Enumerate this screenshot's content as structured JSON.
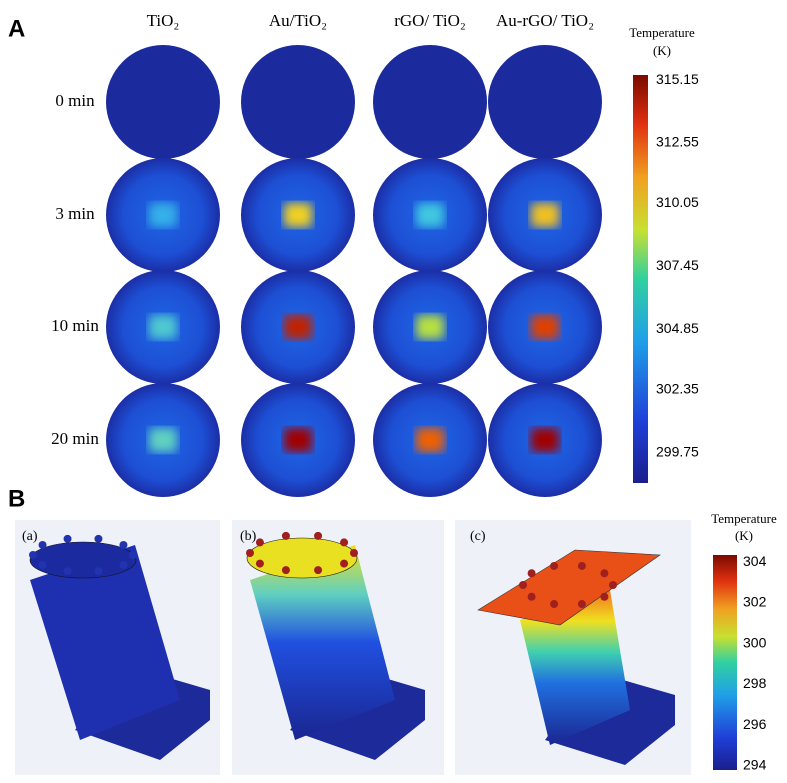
{
  "panel_a": {
    "label": "A",
    "columns": [
      "TiO₂",
      "Au/TiO₂",
      "rGO/ TiO₂",
      "Au-rGO/ TiO₂"
    ],
    "rows": [
      "0 min",
      "3 min",
      "10 min",
      "20 min"
    ],
    "colorbar": {
      "title": "Temperature",
      "unit": "(K)",
      "lim": [
        298.5,
        315.36
      ],
      "ticks": [
        315.15,
        312.55,
        310.05,
        307.45,
        304.85,
        302.35,
        299.75
      ]
    }
  },
  "panel_b": {
    "label": "B",
    "subpanels": [
      "(a)",
      "(b)",
      "(c)"
    ],
    "colorbar": {
      "title": "Temperature",
      "unit": "(K)",
      "lim": [
        293.8,
        304.35
      ],
      "ticks": [
        304,
        302,
        300,
        298,
        296,
        294
      ]
    }
  }
}
